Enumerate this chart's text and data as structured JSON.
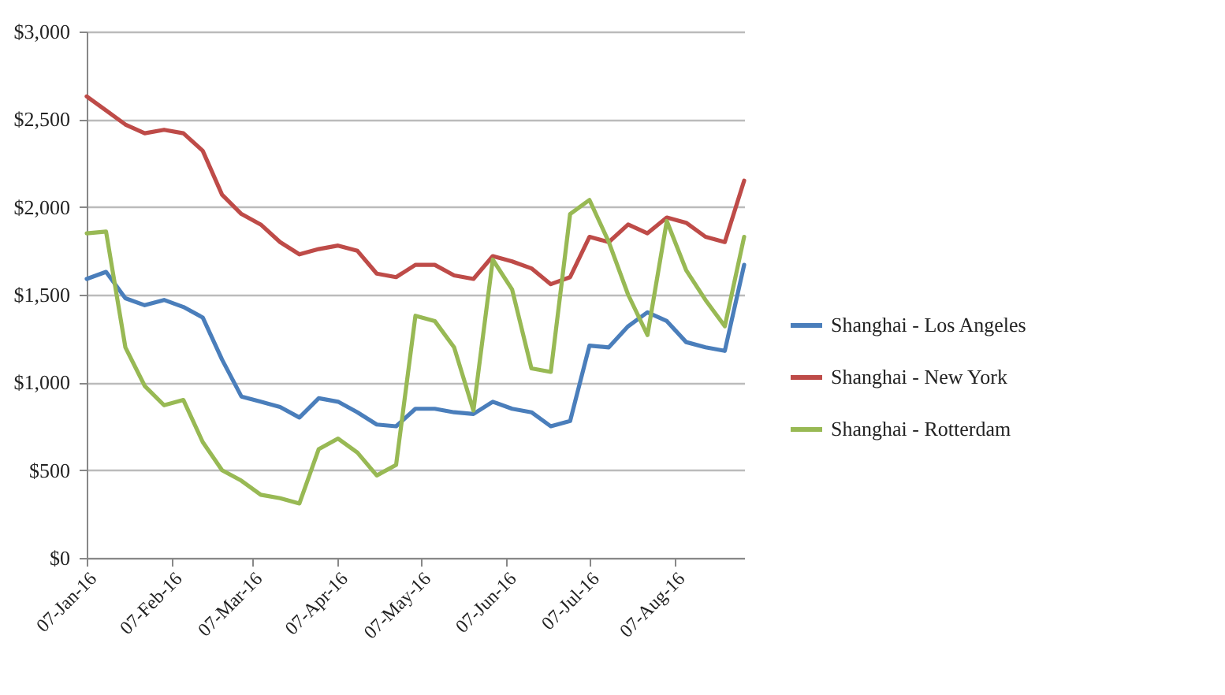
{
  "chart_data": {
    "type": "line",
    "x": [
      "2016-01-07",
      "2016-01-14",
      "2016-01-21",
      "2016-01-28",
      "2016-02-04",
      "2016-02-11",
      "2016-02-18",
      "2016-02-25",
      "2016-03-03",
      "2016-03-10",
      "2016-03-17",
      "2016-03-24",
      "2016-03-31",
      "2016-04-07",
      "2016-04-14",
      "2016-04-21",
      "2016-04-28",
      "2016-05-05",
      "2016-05-12",
      "2016-05-19",
      "2016-05-26",
      "2016-06-02",
      "2016-06-09",
      "2016-06-16",
      "2016-06-23",
      "2016-06-30",
      "2016-07-07",
      "2016-07-14",
      "2016-07-21",
      "2016-07-28",
      "2016-08-04",
      "2016-08-11",
      "2016-08-18",
      "2016-08-25",
      "2016-09-01"
    ],
    "series": [
      {
        "name": "Shanghai - Los Angeles",
        "color": "#4a7ebb",
        "values": [
          1590,
          1630,
          1480,
          1440,
          1470,
          1430,
          1370,
          1130,
          920,
          890,
          860,
          800,
          910,
          890,
          830,
          760,
          750,
          850,
          850,
          830,
          820,
          890,
          850,
          830,
          750,
          780,
          1210,
          1200,
          1320,
          1400,
          1350,
          1230,
          1200,
          1180,
          1670
        ]
      },
      {
        "name": "Shanghai - New York",
        "color": "#be4b48",
        "values": [
          2630,
          2550,
          2470,
          2420,
          2440,
          2420,
          2320,
          2070,
          1960,
          1900,
          1800,
          1730,
          1760,
          1780,
          1750,
          1620,
          1600,
          1670,
          1670,
          1610,
          1590,
          1720,
          1690,
          1650,
          1560,
          1600,
          1830,
          1800,
          1900,
          1850,
          1940,
          1910,
          1830,
          1800,
          2150
        ]
      },
      {
        "name": "Shanghai - Rotterdam",
        "color": "#98b954",
        "values": [
          1850,
          1860,
          1200,
          980,
          870,
          900,
          660,
          500,
          440,
          360,
          340,
          310,
          620,
          680,
          600,
          470,
          530,
          1380,
          1350,
          1200,
          840,
          1700,
          1530,
          1080,
          1060,
          1960,
          2040,
          1800,
          1500,
          1270,
          1920,
          1640,
          1470,
          1320,
          1830
        ]
      }
    ],
    "xlim": [
      "2016-01-07",
      "2016-09-01"
    ],
    "xticks": [
      {
        "value": "2016-01-07",
        "label": "07-Jan-16"
      },
      {
        "value": "2016-02-07",
        "label": "07-Feb-16"
      },
      {
        "value": "2016-03-07",
        "label": "07-Mar-16"
      },
      {
        "value": "2016-04-07",
        "label": "07-Apr-16"
      },
      {
        "value": "2016-05-07",
        "label": "07-May-16"
      },
      {
        "value": "2016-06-07",
        "label": "07-Jun-16"
      },
      {
        "value": "2016-07-07",
        "label": "07-Jul-16"
      },
      {
        "value": "2016-08-07",
        "label": "07-Aug-16"
      }
    ],
    "ylim": [
      0,
      3000
    ],
    "yticks": [
      {
        "value": 0,
        "label": "$0"
      },
      {
        "value": 500,
        "label": "$500"
      },
      {
        "value": 1000,
        "label": "$1,000"
      },
      {
        "value": 1500,
        "label": "$1,500"
      },
      {
        "value": 2000,
        "label": "$2,000"
      },
      {
        "value": 2500,
        "label": "$2,500"
      },
      {
        "value": 3000,
        "label": "$3,000"
      }
    ],
    "grid": "y",
    "legend": "right",
    "marker": "none",
    "line_style": "solid"
  }
}
